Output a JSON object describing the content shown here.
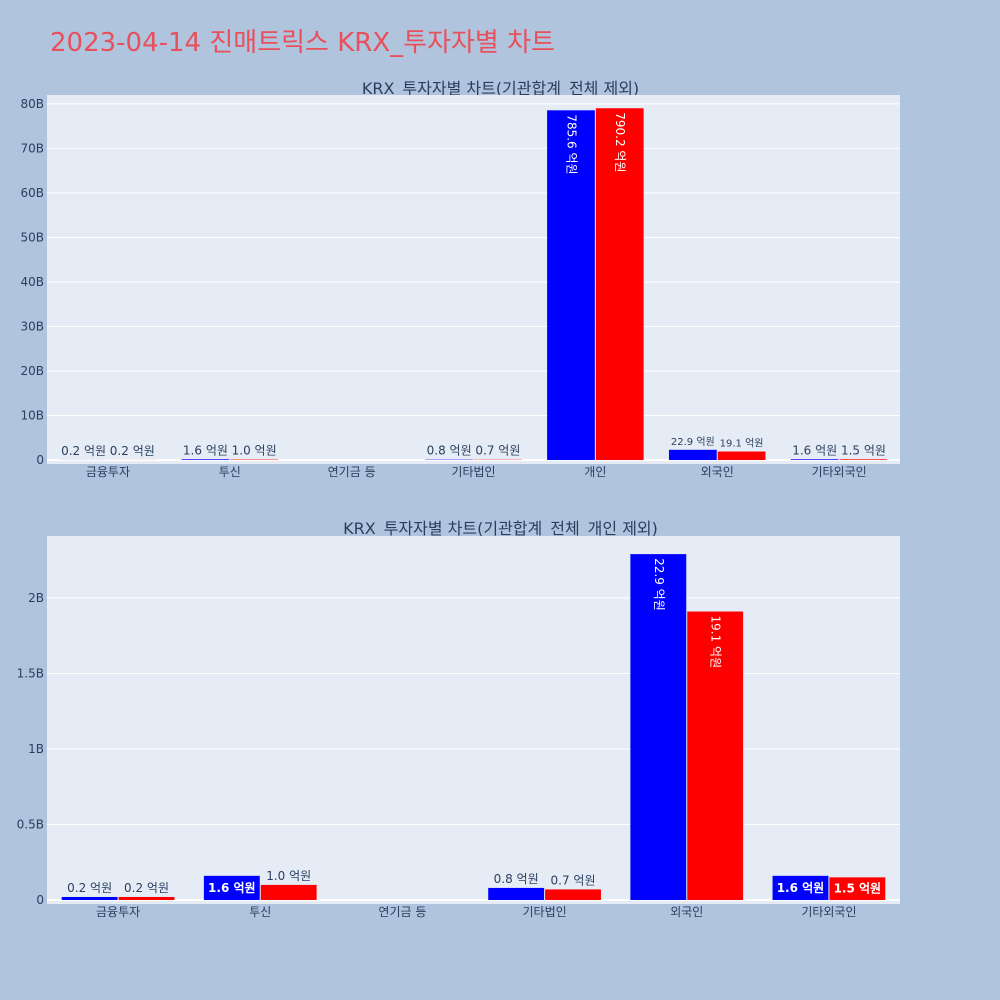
{
  "page": {
    "title": "2023-04-14 진매트릭스 KRX_투자자별 차트"
  },
  "colors": {
    "series_a": "#0000ff",
    "series_b": "#ff0000",
    "plot_bg": "#e5ecf6",
    "page_bg": "#b0c4de",
    "title": "#e8505b"
  },
  "chart_data": [
    {
      "type": "bar",
      "title": "KRX_투자자별 차트(기관합계_전체 제외)",
      "categories": [
        "금융투자",
        "투신",
        "연기금 등",
        "기타법인",
        "개인",
        "외국인",
        "기타외국인"
      ],
      "series": [
        {
          "color": "#0000ff",
          "values": [
            20000000,
            160000000,
            0,
            80000000,
            78560000000,
            2290000000,
            160000000
          ],
          "labels": [
            "0.2 억원",
            "1.6 억원",
            "",
            "0.8 억원",
            "785.6 억원",
            "22.9 억원",
            "1.6 억원"
          ]
        },
        {
          "color": "#ff0000",
          "values": [
            20000000,
            100000000,
            0,
            70000000,
            79020000000,
            1910000000,
            150000000
          ],
          "labels": [
            "0.2 억원",
            "1.0 억원",
            "",
            "0.7 억원",
            "790.2 억원",
            "19.1 억원",
            "1.5 억원"
          ]
        }
      ],
      "ylim": [
        0,
        82000000000
      ],
      "yticks": [
        0,
        10000000000,
        20000000000,
        30000000000,
        40000000000,
        50000000000,
        60000000000,
        70000000000,
        80000000000
      ],
      "ytick_labels": [
        "0",
        "10B",
        "20B",
        "30B",
        "40B",
        "50B",
        "60B",
        "70B",
        "80B"
      ],
      "grid": true,
      "legend": "none"
    },
    {
      "type": "bar",
      "title": "KRX_투자자별 차트(기관합계_전체_개인 제외)",
      "categories": [
        "금융투자",
        "투신",
        "연기금 등",
        "기타법인",
        "외국인",
        "기타외국인"
      ],
      "series": [
        {
          "color": "#0000ff",
          "values": [
            20000000,
            160000000,
            0,
            80000000,
            2290000000,
            160000000
          ],
          "labels": [
            "0.2 억원",
            "1.6 억원",
            "",
            "0.8 억원",
            "22.9 억원",
            "1.6 억원"
          ]
        },
        {
          "color": "#ff0000",
          "values": [
            20000000,
            100000000,
            0,
            70000000,
            1910000000,
            150000000
          ],
          "labels": [
            "0.2 억원",
            "1.0 억원",
            "",
            "0.7 억원",
            "19.1 억원",
            "1.5 억원"
          ]
        }
      ],
      "ylim": [
        0,
        2410000000
      ],
      "yticks": [
        0,
        500000000,
        1000000000,
        1500000000,
        2000000000
      ],
      "ytick_labels": [
        "0",
        "0.5B",
        "1B",
        "1.5B",
        "2B"
      ],
      "grid": true,
      "legend": "none"
    }
  ]
}
